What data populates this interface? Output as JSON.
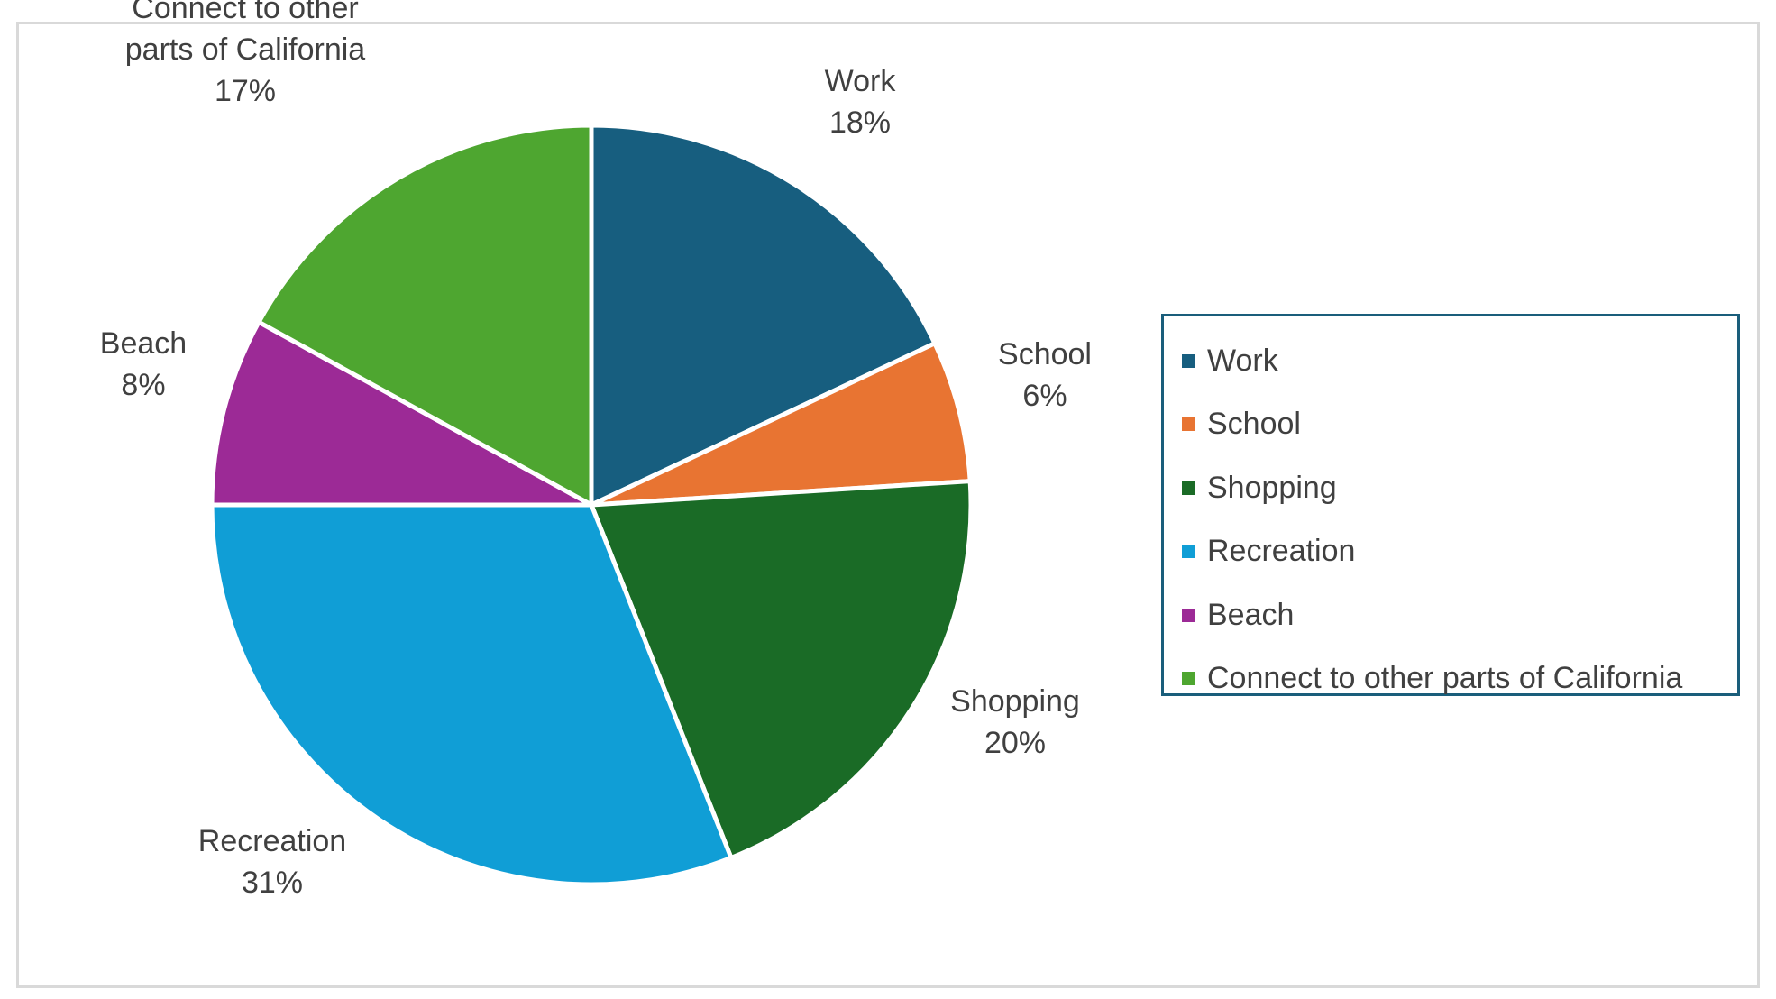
{
  "chart_data": {
    "type": "pie",
    "title": "",
    "categories": [
      "Work",
      "School",
      "Shopping",
      "Recreation",
      "Beach",
      "Connect to other parts of California"
    ],
    "values": [
      18,
      6,
      20,
      31,
      8,
      17
    ],
    "value_labels": [
      "18%",
      "6%",
      "20%",
      "31%",
      "8%",
      "17%"
    ],
    "colors": [
      "#175e7f",
      "#e87432",
      "#1a6b26",
      "#109ed6",
      "#9c2a96",
      "#4ea630"
    ],
    "label_lines": [
      [
        "Work",
        "18%"
      ],
      [
        "School",
        "6%"
      ],
      [
        "Shopping",
        "20%"
      ],
      [
        "Recreation",
        "31%"
      ],
      [
        "Beach",
        "8%"
      ],
      [
        "Connect to other",
        "parts of California",
        "17%"
      ]
    ],
    "legend": {
      "position": "right",
      "items": [
        "Work",
        "School",
        "Shopping",
        "Recreation",
        "Beach",
        "Connect to other parts of California"
      ],
      "border_color": "#1a5e7b"
    }
  }
}
